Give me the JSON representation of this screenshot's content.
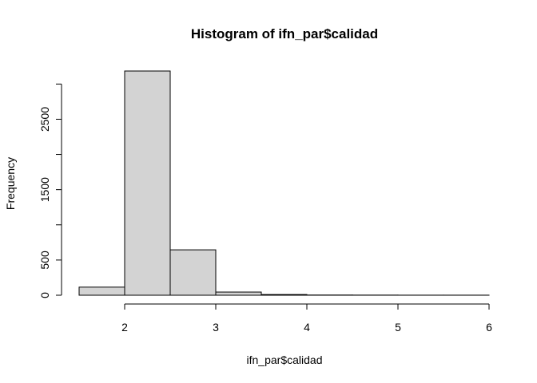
{
  "chart_data": {
    "type": "bar",
    "title": "Histogram of ifn_par$calidad",
    "xlabel": "ifn_par$calidad",
    "ylabel": "Frequency",
    "bin_edges": [
      1.5,
      2.0,
      2.5,
      3.0,
      3.5,
      4.0,
      4.5,
      5.0,
      5.5,
      6.0
    ],
    "values": [
      115,
      3185,
      645,
      45,
      10,
      3,
      2,
      1,
      1
    ],
    "xlim": [
      1.5,
      6.0
    ],
    "ylim": [
      0,
      3185
    ],
    "x_ticks": [
      2,
      3,
      4,
      5,
      6
    ],
    "y_ticks": [
      0,
      500,
      1500,
      2500
    ],
    "y_minor_ticks": [
      1000,
      2000,
      3000
    ],
    "bar_fill": "#d3d3d3",
    "bar_stroke": "#000000",
    "grid": false,
    "legend": "none"
  }
}
